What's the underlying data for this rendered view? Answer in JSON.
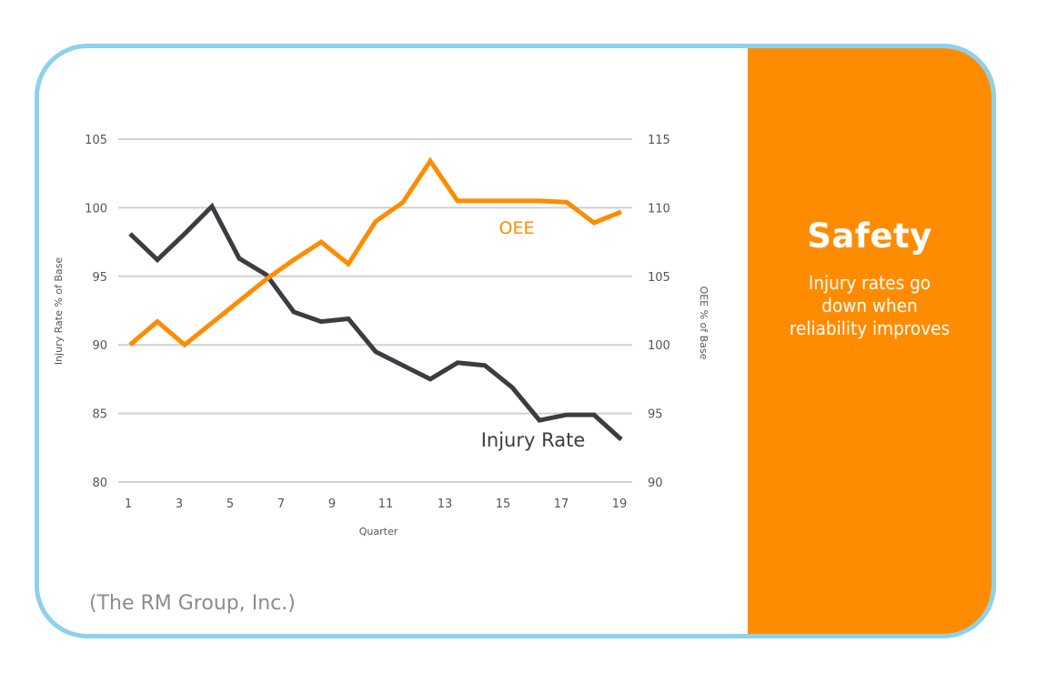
{
  "panel": {
    "title": "Safety",
    "text_lines": [
      "Injury rates go",
      "down when",
      "reliability improves"
    ]
  },
  "source": "(The RM Group, Inc.)",
  "colors": {
    "frame": "#8dd1ec",
    "panel": "#ff8c00",
    "oee": "#ff8c00",
    "injury": "#3a3d42",
    "grid": "#d0d0d0"
  },
  "chart_data": {
    "type": "line",
    "title": "",
    "xlabel": "Quarter",
    "ylabel": "Injury Rate % of Base",
    "ylabel_right": "OEE % of Base",
    "x": [
      1,
      2,
      3,
      4,
      5,
      6,
      7,
      8,
      9,
      10,
      11,
      12,
      13,
      14,
      15,
      16,
      17,
      18,
      19
    ],
    "x_tick_labels": [
      "1",
      "3",
      "5",
      "7",
      "9",
      "11",
      "13",
      "15",
      "17",
      "19"
    ],
    "ylim": [
      80,
      105
    ],
    "ylim_right": [
      90,
      115
    ],
    "y_ticks": [
      "80",
      "85",
      "90",
      "95",
      "100",
      "105"
    ],
    "y_ticks_right": [
      "90",
      "95",
      "100",
      "105",
      "110",
      "115"
    ],
    "grid": true,
    "series": [
      {
        "name": "Injury Rate",
        "axis": "left",
        "label": "Injury Rate",
        "values": [
          98.1,
          96.2,
          98.1,
          100.1,
          96.3,
          95.1,
          92.4,
          91.7,
          91.9,
          89.5,
          88.5,
          87.5,
          88.7,
          88.5,
          86.9,
          84.5,
          84.9,
          84.9,
          83.1
        ]
      },
      {
        "name": "OEE",
        "axis": "right",
        "label": "OEE",
        "values": [
          100,
          101.7,
          100,
          101.6,
          103.2,
          104.8,
          106.2,
          107.5,
          105.9,
          109,
          110.4,
          113.4,
          110.5,
          110.5,
          110.5,
          110.5,
          110.4,
          108.9,
          109.7
        ]
      }
    ]
  }
}
